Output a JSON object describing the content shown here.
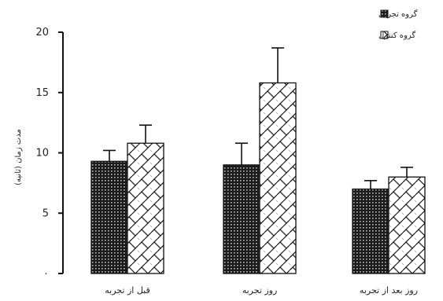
{
  "chart_data": {
    "type": "bar",
    "ylabel": "مدت زمان (ثانیه)",
    "ylim": [
      0,
      20
    ],
    "yticks": [
      {
        "value": 0,
        "label": "۰"
      },
      {
        "value": 5,
        "label": "5"
      },
      {
        "value": 10,
        "label": "10"
      },
      {
        "value": 15,
        "label": "15"
      },
      {
        "value": 20,
        "label": "20"
      }
    ],
    "categories": [
      "قبل از تجربه",
      "روز تجربه",
      "روز بعد از تجربه"
    ],
    "series": [
      {
        "name": "گروه تجربی",
        "values": [
          9.3,
          9.0,
          7.0
        ],
        "errors": [
          0.9,
          1.8,
          0.7
        ]
      },
      {
        "name": "گروه کنترل",
        "values": [
          10.8,
          15.8,
          8.0
        ],
        "errors": [
          1.5,
          2.9,
          0.8
        ]
      }
    ],
    "legend": {
      "position": "top-right"
    },
    "grid": false
  }
}
